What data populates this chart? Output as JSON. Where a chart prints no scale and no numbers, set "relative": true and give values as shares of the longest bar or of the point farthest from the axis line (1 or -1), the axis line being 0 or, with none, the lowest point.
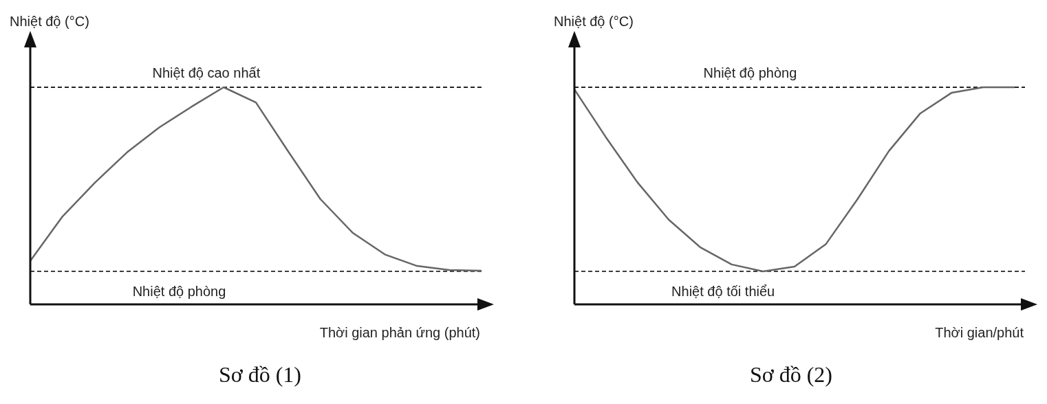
{
  "chart_data": [
    {
      "type": "line",
      "title": "Sơ đồ (1)",
      "xlabel": "Thời gian phản ứng (phút)",
      "ylabel": "Nhiệt độ (°C)",
      "relative": true,
      "categories": [
        null,
        null,
        null,
        null,
        null,
        null,
        null,
        null,
        null,
        null,
        null,
        null,
        null,
        null,
        null
      ],
      "series": [
        {
          "color": "#666666",
          "values": [
            0.2,
            0.405,
            0.56,
            0.7,
            0.815,
            0.91,
            1,
            0.93,
            0.705,
            0.485,
            0.33,
            0.23,
            0.177,
            0.158,
            0.155
          ]
        }
      ],
      "ref_lines": [
        {
          "axis": "y",
          "value": 1,
          "label": "Nhiệt độ cao nhất",
          "line_style": "dashed",
          "color": "#222222"
        },
        {
          "axis": "y",
          "value": 0.152,
          "label": "Nhiệt độ phòng",
          "line_style": "dashed",
          "color": "#222222"
        }
      ]
    },
    {
      "type": "line",
      "title": "Sơ đồ (2)",
      "xlabel": "Thời gian/phút",
      "ylabel": "Nhiệt độ (°C)",
      "relative": true,
      "categories": [
        null,
        null,
        null,
        null,
        null,
        null,
        null,
        null,
        null,
        null,
        null,
        null,
        null,
        null,
        null
      ],
      "series": [
        {
          "color": "#666666",
          "values": [
            0.99,
            0.77,
            0.563,
            0.39,
            0.263,
            0.184,
            0.152,
            0.174,
            0.278,
            0.484,
            0.706,
            0.88,
            0.975,
            1,
            1
          ]
        }
      ],
      "ref_lines": [
        {
          "axis": "y",
          "value": 1,
          "label": "Nhiệt độ phòng",
          "line_style": "dashed",
          "color": "#222222"
        },
        {
          "axis": "y",
          "value": 0.152,
          "label": "Nhiệt độ tối thiểu",
          "line_style": "dashed",
          "color": "#222222"
        }
      ]
    }
  ]
}
